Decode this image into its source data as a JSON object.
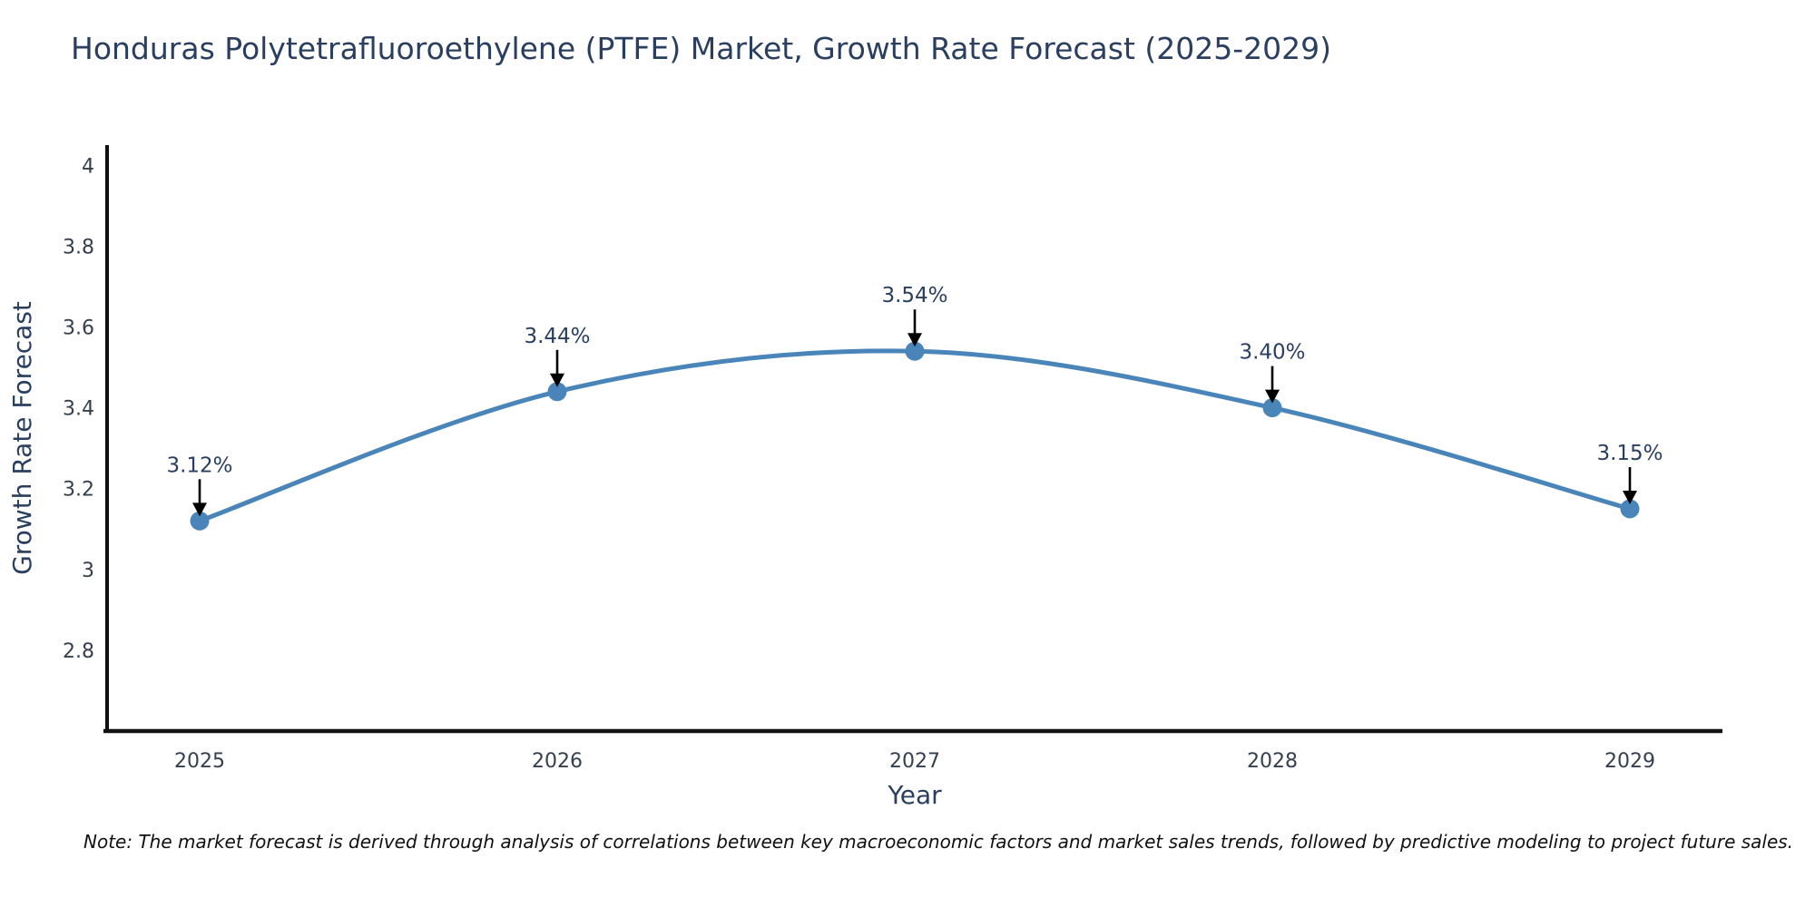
{
  "chart_data": {
    "type": "line",
    "title": "Honduras Polytetrafluoroethylene (PTFE) Market, Growth Rate Forecast (2025-2029)",
    "xlabel": "Year",
    "ylabel": "Growth Rate Forecast",
    "categories": [
      "2025",
      "2026",
      "2027",
      "2028",
      "2029"
    ],
    "series": [
      {
        "name": "Growth Rate Forecast",
        "values": [
          3.12,
          3.44,
          3.54,
          3.4,
          3.15
        ]
      }
    ],
    "point_labels": [
      "3.12%",
      "3.44%",
      "3.54%",
      "3.40%",
      "3.15%"
    ],
    "ytick_values": [
      2.8,
      3,
      3.2,
      3.4,
      3.6,
      3.8,
      4
    ],
    "ytick_labels": [
      "2.8",
      "3",
      "3.2",
      "3.4",
      "3.6",
      "3.8",
      "4"
    ],
    "ylim": [
      2.6,
      4.05
    ],
    "grid": false,
    "legend": "none",
    "line_shape": "spline",
    "annotation_arrows": true,
    "colors": {
      "line": "#4a85ba",
      "marker": "#4a85ba",
      "arrow": "#000000",
      "axis": "#111111",
      "title_text": "#2a3f5f",
      "tick_text": "#35404f",
      "note_text": "#111111"
    },
    "note": "Note: The market forecast is derived through analysis of correlations between key macroeconomic factors and market sales trends, followed by predictive modeling to project future sales."
  }
}
